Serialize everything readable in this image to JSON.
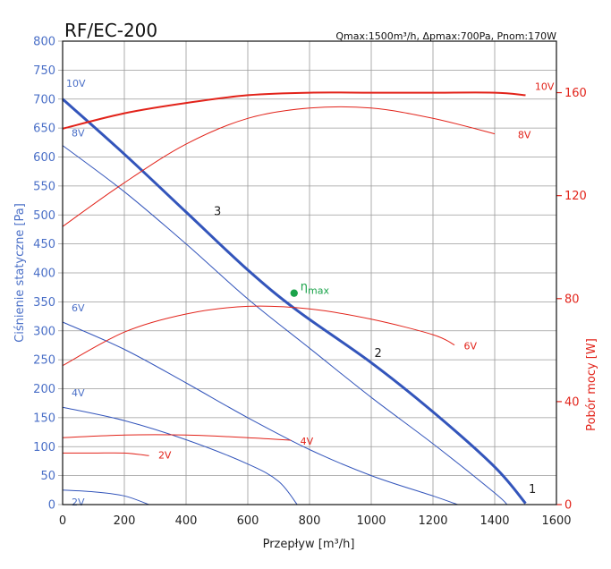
{
  "chart_data": {
    "type": "line",
    "title": "RF/EC-200",
    "specs": "Qmax:1500m³/h, Δpmax:700Pa, Pnom:170W",
    "xlabel": "Przepływ [m³/h]",
    "ylabel_left": "Ciśnienie statyczne [Pa]",
    "ylabel_right": "Pobór mocy [W]",
    "xlim": [
      0,
      1600
    ],
    "ylim_left": [
      0,
      800
    ],
    "ylim_right": [
      0,
      180
    ],
    "x_ticks": [
      "0",
      "200",
      "400",
      "600",
      "800",
      "1000",
      "1200",
      "1400",
      "1600"
    ],
    "y_ticks_left": [
      "0",
      "50",
      "100",
      "150",
      "200",
      "250",
      "300",
      "350",
      "400",
      "450",
      "500",
      "550",
      "600",
      "650",
      "700",
      "750",
      "800"
    ],
    "y_ticks_right": [
      "0",
      "40",
      "80",
      "120",
      "160"
    ],
    "grid": true,
    "colors": {
      "pressure": "#3355bb",
      "power": "#e2231a",
      "eta": "#1aa34a",
      "axis_left": "#4a6fc7"
    },
    "pressure_curves": [
      {
        "label": "10V",
        "bold": true,
        "points": [
          [
            0,
            700
          ],
          [
            200,
            605
          ],
          [
            400,
            505
          ],
          [
            600,
            405
          ],
          [
            760,
            335
          ],
          [
            1000,
            245
          ],
          [
            1200,
            160
          ],
          [
            1400,
            65
          ],
          [
            1500,
            2
          ]
        ]
      },
      {
        "label": "8V",
        "bold": false,
        "points": [
          [
            0,
            620
          ],
          [
            200,
            540
          ],
          [
            400,
            450
          ],
          [
            600,
            355
          ],
          [
            800,
            270
          ],
          [
            1000,
            185
          ],
          [
            1200,
            105
          ],
          [
            1400,
            20
          ],
          [
            1440,
            0
          ]
        ]
      },
      {
        "label": "6V",
        "bold": false,
        "points": [
          [
            0,
            315
          ],
          [
            200,
            268
          ],
          [
            400,
            210
          ],
          [
            600,
            150
          ],
          [
            800,
            95
          ],
          [
            1000,
            50
          ],
          [
            1200,
            15
          ],
          [
            1280,
            0
          ]
        ]
      },
      {
        "label": "4V",
        "bold": false,
        "points": [
          [
            0,
            168
          ],
          [
            200,
            145
          ],
          [
            400,
            112
          ],
          [
            600,
            70
          ],
          [
            700,
            40
          ],
          [
            760,
            0
          ]
        ]
      },
      {
        "label": "2V",
        "bold": false,
        "points": [
          [
            0,
            25
          ],
          [
            100,
            22
          ],
          [
            200,
            15
          ],
          [
            280,
            0
          ]
        ]
      }
    ],
    "power_curves": [
      {
        "label": "10V",
        "bold": true,
        "points": [
          [
            0,
            146
          ],
          [
            200,
            152
          ],
          [
            400,
            156
          ],
          [
            600,
            159
          ],
          [
            800,
            160
          ],
          [
            1000,
            160
          ],
          [
            1200,
            160
          ],
          [
            1400,
            160
          ],
          [
            1500,
            159
          ]
        ]
      },
      {
        "label": "8V",
        "bold": false,
        "points": [
          [
            0,
            108
          ],
          [
            200,
            125
          ],
          [
            400,
            140
          ],
          [
            600,
            150
          ],
          [
            800,
            154
          ],
          [
            1000,
            154
          ],
          [
            1200,
            150
          ],
          [
            1400,
            144
          ]
        ]
      },
      {
        "label": "6V",
        "bold": false,
        "points": [
          [
            0,
            54
          ],
          [
            200,
            67
          ],
          [
            400,
            74
          ],
          [
            600,
            77
          ],
          [
            800,
            76
          ],
          [
            1000,
            72
          ],
          [
            1200,
            66
          ],
          [
            1270,
            62
          ]
        ]
      },
      {
        "label": "4V",
        "bold": false,
        "points": [
          [
            0,
            26
          ],
          [
            200,
            27
          ],
          [
            400,
            27
          ],
          [
            600,
            26
          ],
          [
            740,
            25
          ]
        ]
      },
      {
        "label": "2V",
        "bold": false,
        "points": [
          [
            0,
            20
          ],
          [
            100,
            20
          ],
          [
            200,
            20
          ],
          [
            280,
            19
          ]
        ]
      }
    ],
    "operating_points": [
      {
        "label": "1",
        "x": 1510,
        "y": 20
      },
      {
        "label": "2",
        "x": 1010,
        "y": 255
      },
      {
        "label": "3",
        "x": 490,
        "y": 500
      }
    ],
    "eta_max": {
      "x": 750,
      "y": 365,
      "label": "η",
      "subscript": "max"
    }
  }
}
